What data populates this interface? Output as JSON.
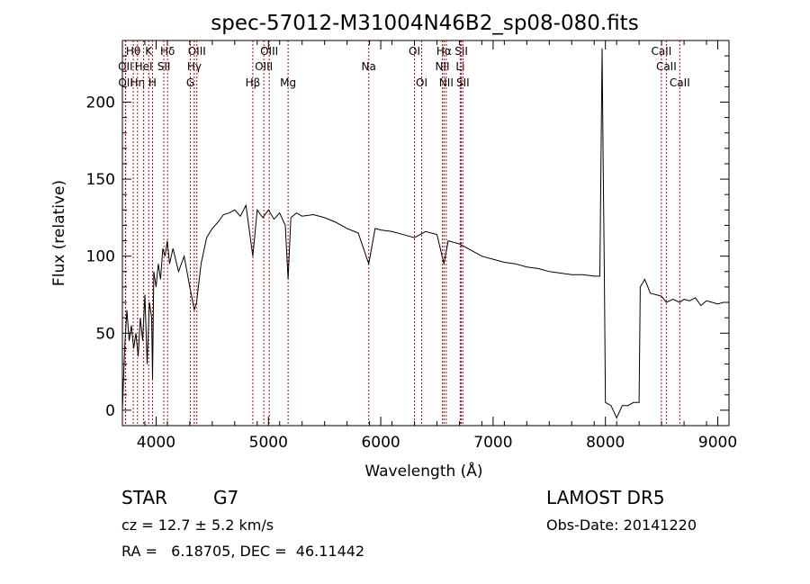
{
  "chart_data": {
    "type": "line",
    "title": "spec-57012-M31004N46B2_sp08-080.fits",
    "xlabel": "Wavelength (Å)",
    "ylabel": "Flux (relative)",
    "xlim": [
      3700,
      9100
    ],
    "ylim": [
      -10,
      240
    ],
    "x_ticks": [
      4000,
      5000,
      6000,
      7000,
      8000,
      9000
    ],
    "y_ticks": [
      0,
      50,
      100,
      150,
      200
    ],
    "grid": false,
    "series": [
      {
        "x": [
          3700,
          3720,
          3740,
          3760,
          3780,
          3800,
          3820,
          3840,
          3860,
          3880,
          3900,
          3920,
          3940,
          3960,
          3968,
          3980,
          4000,
          4020,
          4040,
          4060,
          4080,
          4100,
          4120,
          4150,
          4200,
          4250,
          4300,
          4340,
          4360,
          4400,
          4450,
          4500,
          4550,
          4600,
          4650,
          4700,
          4750,
          4800,
          4861,
          4900,
          4950,
          5000,
          5050,
          5100,
          5150,
          5175,
          5200,
          5250,
          5300,
          5400,
          5500,
          5600,
          5700,
          5800,
          5893,
          5950,
          6000,
          6100,
          6200,
          6300,
          6400,
          6500,
          6563,
          6600,
          6700,
          6800,
          6900,
          7000,
          7100,
          7200,
          7300,
          7400,
          7500,
          7600,
          7700,
          7800,
          7900,
          7950,
          7970,
          7980,
          7990,
          8000,
          8050,
          8100,
          8150,
          8200,
          8250,
          8300,
          8310,
          8350,
          8400,
          8450,
          8500,
          8542,
          8600,
          8662,
          8700,
          8750,
          8800,
          8850,
          8900,
          8950,
          9000,
          9050,
          9060
        ],
        "y": [
          0,
          40,
          65,
          45,
          55,
          40,
          50,
          35,
          60,
          45,
          75,
          30,
          70,
          60,
          20,
          90,
          80,
          95,
          85,
          105,
          100,
          110,
          95,
          105,
          90,
          100,
          80,
          65,
          70,
          95,
          112,
          118,
          122,
          127,
          128,
          130,
          126,
          133,
          100,
          130,
          125,
          130,
          124,
          128,
          120,
          85,
          125,
          128,
          126,
          127,
          125,
          122,
          118,
          115,
          95,
          118,
          117,
          116,
          114,
          112,
          116,
          114,
          95,
          110,
          108,
          104,
          100,
          98,
          96,
          95,
          93,
          92,
          90,
          89,
          88,
          88,
          87,
          87,
          235,
          160,
          88,
          5,
          3,
          -5,
          3,
          3,
          5,
          5,
          80,
          85,
          76,
          75,
          74,
          70,
          72,
          70,
          72,
          71,
          73,
          68,
          71,
          70,
          69,
          70,
          70
        ]
      }
    ],
    "line_markers": [
      {
        "label": "Hθ",
        "x": 3797,
        "row": 1
      },
      {
        "label": "OII",
        "x": 3727,
        "row": 2
      },
      {
        "label": "OII",
        "x": 3729,
        "row": 3
      },
      {
        "label": "Hη",
        "x": 3835,
        "row": 3
      },
      {
        "label": "HeI",
        "x": 3889,
        "row": 2
      },
      {
        "label": "K",
        "x": 3934,
        "row": 1
      },
      {
        "label": "H",
        "x": 3968,
        "row": 3
      },
      {
        "label": "Hδ",
        "x": 4102,
        "row": 1
      },
      {
        "label": "SII",
        "x": 4069,
        "row": 2
      },
      {
        "label": "OIII",
        "x": 4363,
        "row": 1
      },
      {
        "label": "Hγ",
        "x": 4340,
        "row": 2
      },
      {
        "label": "G",
        "x": 4305,
        "row": 3
      },
      {
        "label": "OIII",
        "x": 5007,
        "row": 1
      },
      {
        "label": "OIII",
        "x": 4959,
        "row": 2
      },
      {
        "label": "Hβ",
        "x": 4861,
        "row": 3
      },
      {
        "label": "Mg",
        "x": 5175,
        "row": 3
      },
      {
        "label": "Na",
        "x": 5893,
        "row": 2
      },
      {
        "label": "OI",
        "x": 6300,
        "row": 1
      },
      {
        "label": "OI",
        "x": 6364,
        "row": 3
      },
      {
        "label": "Hα",
        "x": 6563,
        "row": 1
      },
      {
        "label": "NII",
        "x": 6548,
        "row": 2
      },
      {
        "label": "NII",
        "x": 6583,
        "row": 3
      },
      {
        "label": "SII",
        "x": 6717,
        "row": 1
      },
      {
        "label": "Li",
        "x": 6708,
        "row": 2
      },
      {
        "label": "SII",
        "x": 6731,
        "row": 3
      },
      {
        "label": "CaII",
        "x": 8498,
        "row": 1
      },
      {
        "label": "CaII",
        "x": 8542,
        "row": 2
      },
      {
        "label": "CaII",
        "x": 8662,
        "row": 3
      }
    ]
  },
  "info": {
    "class_label": "STAR",
    "subclass": "G7",
    "survey": "LAMOST DR5",
    "cz": "cz = 12.7 ± 5.2 km/s",
    "obs_date": "Obs-Date: 20141220",
    "coords": "RA =   6.18705, DEC =  46.11442"
  },
  "colors": {
    "line_marker": "#cc0000",
    "spectrum": "#000000",
    "axes": "#000000"
  }
}
